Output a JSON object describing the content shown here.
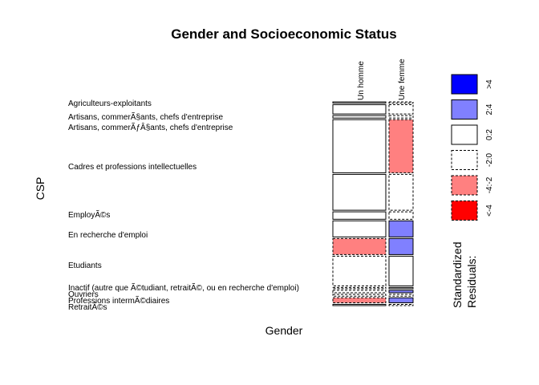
{
  "chart_data": {
    "type": "mosaic",
    "title": "Gender and Socioeconomic Status",
    "xlabel": "Gender",
    "ylabel": "CSP",
    "legend": {
      "title_line1": "Standardized",
      "title_line2": "Residuals:",
      "placement": "right",
      "items": [
        {
          "label": ">4",
          "fill": "#0000ff",
          "dashed": false
        },
        {
          "label": "2:4",
          "fill": "#8080ff",
          "dashed": false
        },
        {
          "label": "0:2",
          "fill": "#ffffff",
          "dashed": false
        },
        {
          "label": "-2:0",
          "fill": "#ffffff",
          "dashed": true
        },
        {
          "label": "-4:-2",
          "fill": "#ff8080",
          "dashed": true
        },
        {
          "label": "<-4",
          "fill": "#ff0000",
          "dashed": true
        }
      ]
    },
    "columns": [
      "Un homme",
      "Une femme"
    ],
    "rows": [
      {
        "label": "Agriculteurs-exploitants",
        "counts": [
          1,
          1
        ],
        "residual_class": [
          2,
          3
        ]
      },
      {
        "label": "Artisans, commerÃ§ants, chefs d'entreprise",
        "counts": [
          10,
          5
        ],
        "residual_class": [
          2,
          3
        ]
      },
      {
        "label": "Artisans, commerÃƒÂ§ants, chefs d'entreprise",
        "counts": [
          3,
          1
        ],
        "residual_class": [
          2,
          3
        ]
      },
      {
        "label": "Cadres et professions intellectuelles",
        "counts": [
          47,
          39
        ],
        "residual_class": [
          2,
          4
        ]
      },
      {
        "label": "Cadres et professions intellectuelles",
        "counts": [
          47,
          11
        ],
        "residual_class": [
          2,
          3
        ]
      },
      {
        "label": "EmployÃ©s",
        "counts": [
          11,
          1
        ],
        "residual_class": [
          2,
          3
        ]
      },
      {
        "label": "EmployÃ©s",
        "counts": [
          11,
          15
        ],
        "residual_class": [
          2,
          1
        ]
      },
      {
        "label": "En recherche d'emploi",
        "counts": [
          11,
          15
        ],
        "residual_class": [
          4,
          1
        ]
      },
      {
        "label": "Etudiants",
        "counts": [
          25,
          23
        ],
        "residual_class": [
          3,
          2
        ]
      },
      {
        "label": "Inactif (autre que Ã©tudiant, retraitÃ©, ou en recherche d'emploi)",
        "counts": [
          1,
          1
        ],
        "residual_class": [
          3,
          2
        ]
      },
      {
        "label": "Inactif (autre que Ã©tudiant, retraitÃ©, ou en recherche d'emploi)",
        "counts": [
          1,
          3
        ],
        "residual_class": [
          3,
          1
        ]
      },
      {
        "label": "Ouvriers",
        "counts": [
          2,
          1
        ],
        "residual_class": [
          3,
          3
        ]
      },
      {
        "label": "Professions intermÃ©diaires",
        "counts": [
          3,
          5
        ],
        "residual_class": [
          4,
          1
        ]
      },
      {
        "label": "RetraitÃ©s",
        "counts": [
          1,
          1
        ],
        "residual_class": [
          2,
          3
        ]
      }
    ]
  }
}
